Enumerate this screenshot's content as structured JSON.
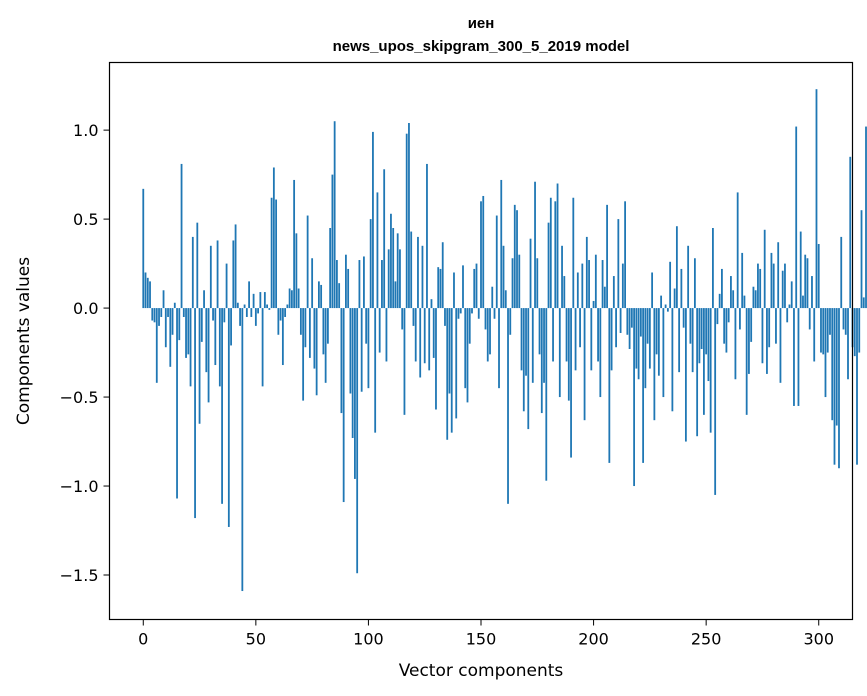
{
  "chart_data": {
    "type": "bar",
    "title": [
      "иен",
      "news_upos_skipgram_300_5_2019 model"
    ],
    "xlabel": "Vector components",
    "ylabel": "Components values",
    "xlim": [
      -15,
      315
    ],
    "ylim": [
      -1.75,
      1.38
    ],
    "xticks": [
      0,
      50,
      100,
      150,
      200,
      250,
      300
    ],
    "xtick_labels": [
      "0",
      "50",
      "100",
      "150",
      "200",
      "250",
      "300"
    ],
    "yticks": [
      -1.5,
      -1.0,
      -0.5,
      0.0,
      0.5,
      1.0
    ],
    "ytick_labels": [
      "−1.5",
      "−1.0",
      "−0.5",
      "0.0",
      "0.5",
      "1.0"
    ],
    "bar_color": "#1f77b4",
    "grid": false,
    "values": [
      0.67,
      0.2,
      0.17,
      0.15,
      -0.07,
      -0.08,
      -0.42,
      -0.1,
      -0.05,
      0.1,
      -0.22,
      -0.05,
      -0.33,
      -0.15,
      0.03,
      -1.07,
      -0.18,
      0.81,
      -0.05,
      -0.28,
      -0.26,
      -0.44,
      0.4,
      -1.18,
      0.48,
      -0.65,
      -0.19,
      0.1,
      -0.36,
      -0.53,
      0.35,
      -0.07,
      -0.32,
      0.38,
      -0.44,
      -1.1,
      -0.08,
      0.25,
      -1.23,
      -0.21,
      0.38,
      0.47,
      0.03,
      -0.1,
      -1.59,
      0.02,
      -0.05,
      0.15,
      -0.05,
      0.08,
      -0.1,
      -0.03,
      0.09,
      -0.44,
      0.09,
      0.02,
      -0.01,
      0.62,
      0.79,
      0.61,
      -0.15,
      -0.07,
      -0.32,
      -0.05,
      0.02,
      0.11,
      0.1,
      0.72,
      0.42,
      0.11,
      -0.15,
      -0.52,
      -0.22,
      0.52,
      -0.28,
      0.28,
      -0.34,
      -0.49,
      0.15,
      0.13,
      -0.26,
      -0.42,
      -0.2,
      0.45,
      0.75,
      1.05,
      0.27,
      0.14,
      -0.59,
      -1.09,
      0.3,
      0.22,
      -0.48,
      -0.73,
      -0.96,
      -1.49,
      0.27,
      -0.47,
      0.29,
      -0.2,
      -0.45,
      0.5,
      0.99,
      -0.7,
      0.65,
      -0.25,
      0.27,
      0.78,
      -0.3,
      0.33,
      0.53,
      0.45,
      0.15,
      0.42,
      0.33,
      -0.12,
      -0.6,
      0.98,
      1.04,
      0.43,
      -0.1,
      -0.3,
      0.4,
      -0.39,
      0.35,
      -0.31,
      0.81,
      -0.35,
      0.05,
      -0.28,
      -0.57,
      0.23,
      0.22,
      0.37,
      -0.1,
      -0.74,
      -0.48,
      -0.7,
      0.2,
      -0.62,
      -0.06,
      -0.03,
      0.24,
      -0.45,
      -0.53,
      -0.2,
      -0.03,
      0.22,
      0.25,
      -0.06,
      0.6,
      0.63,
      -0.12,
      -0.3,
      -0.26,
      0.12,
      -0.06,
      0.52,
      -0.45,
      0.72,
      0.35,
      0.1,
      -1.1,
      -0.15,
      0.28,
      0.58,
      0.55,
      0.3,
      -0.35,
      -0.58,
      -0.38,
      -0.68,
      0.39,
      -0.42,
      0.71,
      0.28,
      -0.26,
      -0.59,
      -0.42,
      -0.97,
      0.48,
      0.62,
      -0.3,
      0.6,
      0.7,
      -0.5,
      0.35,
      0.18,
      -0.3,
      -0.52,
      -0.84,
      0.62,
      -0.35,
      0.2,
      -0.22,
      0.25,
      -0.63,
      0.4,
      0.27,
      -0.35,
      0.04,
      0.3,
      -0.3,
      -0.5,
      0.27,
      0.12,
      0.58,
      -0.87,
      -0.35,
      0.18,
      -0.22,
      0.5,
      -0.14,
      0.25,
      0.6,
      -0.15,
      -0.23,
      -0.11,
      -1.0,
      -0.34,
      -0.4,
      -0.16,
      -0.87,
      -0.45,
      -0.2,
      -0.34,
      0.2,
      -0.63,
      -0.26,
      -0.38,
      0.07,
      -0.5,
      0.02,
      -0.02,
      0.26,
      -0.58,
      0.11,
      0.46,
      -0.36,
      0.22,
      -0.11,
      -0.75,
      0.35,
      -0.2,
      -0.36,
      0.28,
      -0.72,
      -0.31,
      -0.23,
      -0.6,
      -0.26,
      -0.41,
      -0.7,
      0.45,
      -1.05,
      -0.09,
      0.08,
      0.22,
      -0.2,
      -0.25,
      -0.08,
      0.18,
      0.1,
      -0.4,
      0.65,
      -0.12,
      0.31,
      0.07,
      -0.6,
      -0.37,
      -0.19,
      0.12,
      0.1,
      0.25,
      0.22,
      -0.31,
      0.44,
      -0.37,
      -0.22,
      0.31,
      0.25,
      -0.2,
      0.37,
      -0.42,
      0.21,
      0.25,
      -0.08,
      0.02,
      0.15,
      -0.55,
      1.02,
      -0.55,
      0.43,
      0.07,
      0.3,
      0.28,
      -0.12,
      0.18,
      -0.3,
      1.23,
      0.36,
      -0.25,
      -0.26,
      -0.5,
      -0.25,
      -0.15,
      -0.63,
      -0.88,
      -0.66,
      -0.9,
      0.4,
      -0.12,
      -0.15,
      -0.4,
      0.85,
      -0.22,
      -0.27,
      -0.88,
      -0.25,
      0.55,
      0.06,
      1.02,
      0.07
    ]
  }
}
